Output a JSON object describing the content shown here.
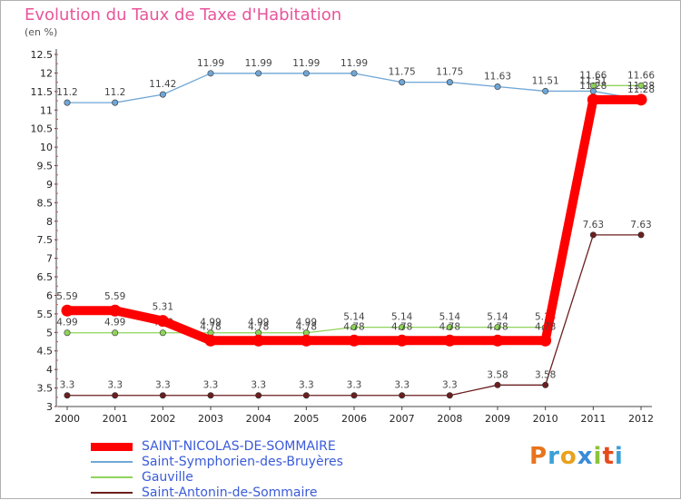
{
  "title": "Evolution du Taux de Taxe d'Habitation",
  "unit": "(en %)",
  "logo": {
    "letters": [
      "P",
      "r",
      "o",
      "x",
      "i",
      "t",
      "i"
    ],
    "colors": [
      "#e8741c",
      "#3aa0d8",
      "#e8a21c",
      "#3a8ad8",
      "#8ac43a",
      "#e84a1c",
      "#3aa0d8"
    ]
  },
  "chart_data": {
    "type": "line",
    "x": [
      "2000",
      "2001",
      "2002",
      "2003",
      "2004",
      "2005",
      "2006",
      "2007",
      "2008",
      "2009",
      "2010",
      "2011",
      "2012"
    ],
    "y_ticks": [
      "3",
      "3.5",
      "4",
      "4.5",
      "5",
      "5.5",
      "6",
      "6.5",
      "7",
      "7.5",
      "8",
      "8.5",
      "9",
      "9.5",
      "10",
      "10.5",
      "11",
      "11.5",
      "12",
      "12.5"
    ],
    "ylim": [
      3,
      12.5
    ],
    "grid": false,
    "legend_position": "bottom-left",
    "series": [
      {
        "name": "Saint-Antonin-de-Sommaire",
        "color": "#6b1f1f",
        "values": [
          3.3,
          3.3,
          3.3,
          3.3,
          3.3,
          3.3,
          3.3,
          3.3,
          3.3,
          3.58,
          3.58,
          7.63,
          7.63
        ],
        "labels": [
          "3.3",
          "3.3",
          "3.3",
          "3.3",
          "3.3",
          "3.3",
          "3.3",
          "3.3",
          "3.3",
          "3.58",
          "3.58",
          "7.63",
          "7.63"
        ]
      },
      {
        "name": "Gauville",
        "color": "#8fd45a",
        "values": [
          4.99,
          4.99,
          4.99,
          4.99,
          4.99,
          4.99,
          5.14,
          5.14,
          5.14,
          5.14,
          5.14,
          11.66,
          11.66
        ],
        "labels": [
          "4.99",
          "4.99",
          "4.99",
          "4.99",
          "4.99",
          "4.99",
          "5.14",
          "5.14",
          "5.14",
          "5.14",
          "5.14",
          "11.66",
          "11.66"
        ]
      },
      {
        "name": "Saint-Symphorien-des-Bruyères",
        "color": "#6fa6d6",
        "values": [
          11.2,
          11.2,
          11.42,
          11.99,
          11.99,
          11.99,
          11.99,
          11.75,
          11.75,
          11.63,
          11.51,
          11.51,
          11.28
        ],
        "labels": [
          "11.2",
          "11.2",
          "11.42",
          "11.99",
          "11.99",
          "11.99",
          "11.99",
          "11.75",
          "11.75",
          "11.63",
          "11.51",
          "11.51",
          "11.28"
        ]
      },
      {
        "name": "SAINT-NICOLAS-DE-SOMMAIRE",
        "color": "#ff0000",
        "values": [
          5.59,
          5.59,
          5.31,
          4.78,
          4.78,
          4.78,
          4.78,
          4.78,
          4.78,
          4.78,
          4.78,
          11.28,
          11.28
        ],
        "labels": [
          "5.59",
          "5.59",
          "5.31",
          "4.78",
          "4.78",
          "4.78",
          "4.78",
          "4.78",
          "4.78",
          "4.78",
          "4.78",
          "11.28",
          "11.28"
        ],
        "thick": true
      }
    ],
    "legend_order": [
      "SAINT-NICOLAS-DE-SOMMAIRE",
      "Saint-Symphorien-des-Bruyères",
      "Gauville",
      "Saint-Antonin-de-Sommaire"
    ]
  }
}
